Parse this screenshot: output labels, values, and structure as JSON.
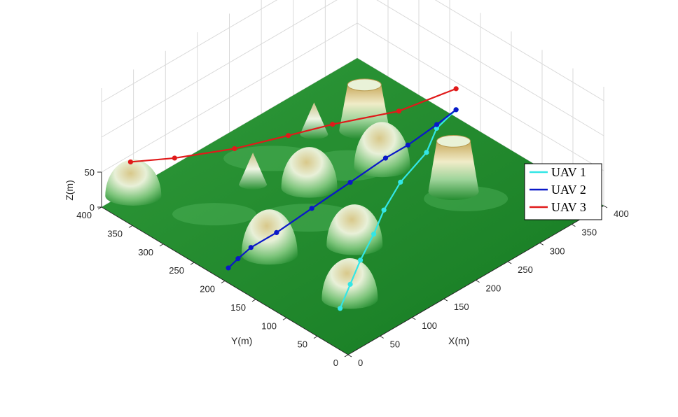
{
  "chart_data": {
    "type": "line",
    "title": "",
    "xlabel": "X(m)",
    "ylabel": "Y(m)",
    "zlabel": "Z(m)",
    "xlim": [
      0,
      400
    ],
    "ylim": [
      0,
      400
    ],
    "zlim": [
      0,
      50
    ],
    "x_ticks": [
      "0",
      "50",
      "100",
      "150",
      "200",
      "250",
      "300",
      "350",
      "400"
    ],
    "y_ticks": [
      "0",
      "50",
      "100",
      "150",
      "200",
      "250",
      "300",
      "350",
      "400"
    ],
    "z_ticks": [
      "0",
      "50"
    ],
    "grid": true,
    "legend_position": "right",
    "surface": {
      "description_type": "3d terrain surface",
      "colormap": "green-to-tan",
      "obstacles": [
        {
          "shape": "dome",
          "x": 75,
          "y": 75,
          "z": 45
        },
        {
          "shape": "dome",
          "x": 70,
          "y": 200,
          "z": 50
        },
        {
          "shape": "dome",
          "x": 150,
          "y": 145,
          "z": 45
        },
        {
          "shape": "dome",
          "x": 190,
          "y": 260,
          "z": 45
        },
        {
          "shape": "dome",
          "x": 275,
          "y": 230,
          "z": 50
        },
        {
          "shape": "cone",
          "x": 150,
          "y": 310,
          "z": 35
        },
        {
          "shape": "cone",
          "x": 265,
          "y": 330,
          "z": 35
        },
        {
          "shape": "truncated-cone",
          "x": 310,
          "y": 295,
          "z": 50
        },
        {
          "shape": "truncated-cone",
          "x": 300,
          "y": 140,
          "z": 55
        },
        {
          "shape": "dome",
          "x": 40,
          "y": 390,
          "z": 40
        }
      ]
    },
    "series": [
      {
        "name": "UAV 1",
        "color": "#33e6e6",
        "points": [
          [
            55,
            70,
            0
          ],
          [
            95,
            95,
            0
          ],
          [
            135,
            120,
            0
          ],
          [
            180,
            145,
            0
          ],
          [
            220,
            170,
            0
          ],
          [
            270,
            195,
            0
          ],
          [
            330,
            215,
            0
          ],
          [
            370,
            240,
            0
          ],
          [
            410,
            250,
            0
          ]
        ]
      },
      {
        "name": "UAV 2",
        "color": "#0a18c8",
        "points": [
          [
            20,
            215,
            0
          ],
          [
            40,
            220,
            0
          ],
          [
            65,
            225,
            0
          ],
          [
            105,
            225,
            0
          ],
          [
            165,
            230,
            0
          ],
          [
            230,
            235,
            0
          ],
          [
            290,
            240,
            0
          ],
          [
            325,
            240,
            0
          ],
          [
            375,
            245,
            0
          ],
          [
            410,
            250,
            0
          ]
        ]
      },
      {
        "name": "UAV 3",
        "color": "#e01a1a",
        "points": [
          [
            55,
            410,
            30
          ],
          [
            95,
            380,
            30
          ],
          [
            155,
            345,
            30
          ],
          [
            215,
            320,
            30
          ],
          [
            265,
            300,
            30
          ],
          [
            335,
            265,
            30
          ],
          [
            410,
            250,
            30
          ]
        ]
      }
    ]
  }
}
